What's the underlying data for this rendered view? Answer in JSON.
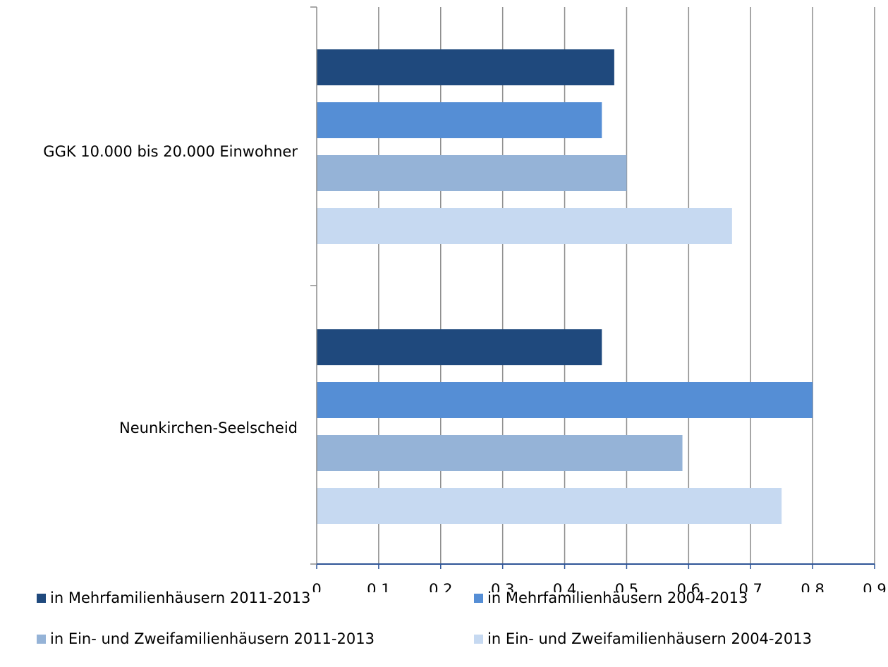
{
  "chart_data": {
    "type": "bar",
    "orientation": "horizontal",
    "categories": [
      "GGK 10.000 bis 20.000 Einwohner",
      "Neunkirchen-Seelscheid"
    ],
    "series": [
      {
        "name": "in Mehrfamilienhäusern 2011-2013",
        "color": "#1f497d",
        "values": [
          0.48,
          0.46
        ]
      },
      {
        "name": "in Mehrfamilienhäusern 2004-2013",
        "color": "#558ed5",
        "values": [
          0.46,
          0.8
        ]
      },
      {
        "name": "in Ein- und Zweifamilienhäusern 2011-2013",
        "color": "#95b3d7",
        "values": [
          0.5,
          0.59
        ]
      },
      {
        "name": "in Ein- und Zweifamilienhäusern 2004-2013",
        "color": "#c6d9f1",
        "values": [
          0.67,
          0.75
        ]
      }
    ],
    "xlim": [
      0,
      0.9
    ],
    "xticks": [
      "0",
      "0,1",
      "0,2",
      "0,3",
      "0,4",
      "0,5",
      "0,6",
      "0,7",
      "0,8",
      "0,9"
    ],
    "grid": "vertical",
    "legend": "bottom",
    "title": "",
    "xlabel": "",
    "ylabel": ""
  }
}
